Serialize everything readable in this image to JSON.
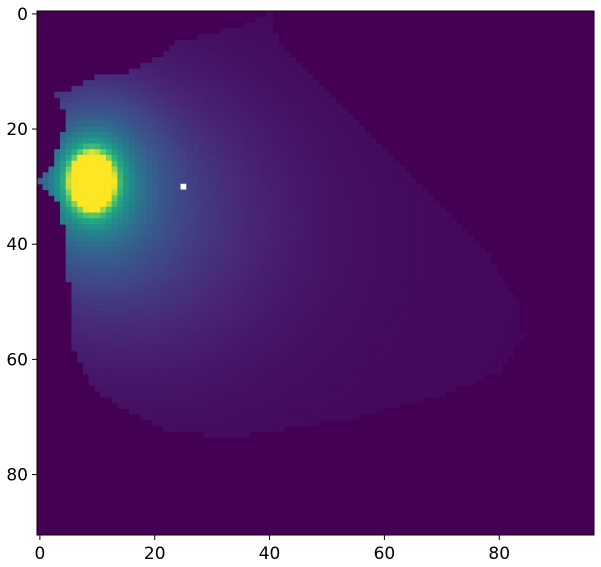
{
  "chart_data": {
    "type": "heatmap",
    "title": "",
    "xlabel": "",
    "ylabel": "",
    "colormap": "viridis",
    "background_color": "#440154",
    "marker_color": "#ffffff",
    "grid": false,
    "legend": "none",
    "dims": {
      "columns": 97,
      "rows": 91
    },
    "xlim": [
      -0.5,
      96.5
    ],
    "ylim": [
      90.5,
      -0.5
    ],
    "x_ticks": [
      0,
      20,
      40,
      60,
      80
    ],
    "y_ticks": [
      0,
      20,
      40,
      60,
      80
    ],
    "x_tick_labels": [
      "0",
      "20",
      "40",
      "60",
      "80"
    ],
    "y_tick_labels": [
      "0",
      "20",
      "40",
      "60",
      "80"
    ],
    "peak": {
      "x": 9,
      "y": 29,
      "value": 1.0
    },
    "blank_cell": {
      "x": 25,
      "y": 30
    },
    "support_outline": {
      "left_edge_by_row": [
        [
          14,
          3
        ],
        [
          18,
          5
        ],
        [
          21,
          4
        ],
        [
          24,
          3
        ],
        [
          27,
          2
        ],
        [
          29,
          0
        ],
        [
          31,
          2
        ],
        [
          33,
          4
        ],
        [
          36,
          4
        ],
        [
          38,
          5
        ],
        [
          42,
          5
        ],
        [
          46,
          5
        ],
        [
          50,
          6
        ],
        [
          55,
          6
        ],
        [
          58,
          6
        ],
        [
          60,
          7
        ],
        [
          64,
          9
        ],
        [
          66,
          11
        ],
        [
          68,
          14
        ],
        [
          70,
          18
        ],
        [
          72,
          22
        ],
        [
          73,
          29
        ]
      ],
      "right_edge_by_row": [
        [
          0,
          40
        ],
        [
          4,
          41
        ],
        [
          8,
          44
        ],
        [
          12,
          48
        ],
        [
          18,
          54
        ],
        [
          24,
          60
        ],
        [
          30,
          66
        ],
        [
          36,
          72
        ],
        [
          42,
          78
        ],
        [
          50,
          83
        ],
        [
          56,
          84
        ],
        [
          62,
          80
        ],
        [
          66,
          70
        ],
        [
          70,
          55
        ],
        [
          73,
          36
        ]
      ],
      "top_edge_by_col": [
        [
          3,
          14
        ],
        [
          6,
          13
        ],
        [
          10,
          11
        ],
        [
          16,
          10
        ],
        [
          20,
          8
        ],
        [
          24,
          5
        ],
        [
          28,
          4
        ],
        [
          32,
          3
        ],
        [
          36,
          2
        ],
        [
          40,
          0
        ]
      ]
    }
  }
}
